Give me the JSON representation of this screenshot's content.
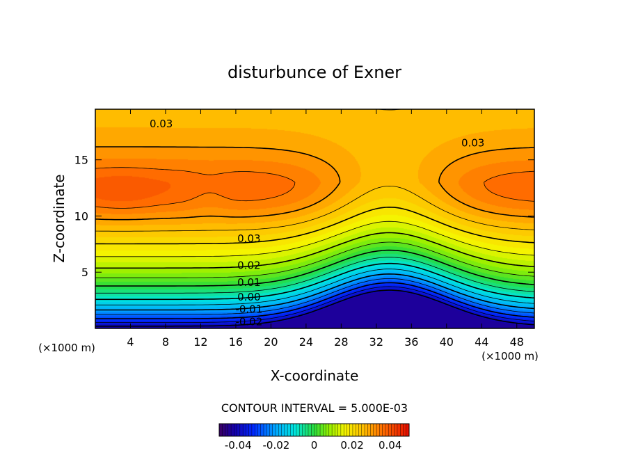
{
  "chart_data": {
    "type": "heatmap",
    "title": "disturbunce of Exner",
    "xlabel": "X-coordinate",
    "ylabel": "Z-coordinate",
    "x_unit_left": "(×1000 m)",
    "x_unit_right": "(×1000 m)",
    "xlim": [
      0,
      50
    ],
    "ylim": [
      0,
      19.5
    ],
    "x_ticks": [
      4,
      8,
      12,
      16,
      20,
      24,
      28,
      32,
      36,
      40,
      44,
      48
    ],
    "x_tick_labels": [
      "4",
      "8",
      "12",
      "16",
      "20",
      "24",
      "28",
      "32",
      "36",
      "40",
      "44",
      "48"
    ],
    "y_ticks": [
      5,
      10,
      15
    ],
    "y_tick_labels": [
      "5",
      "10",
      "15"
    ],
    "contour_interval_text": "CONTOUR INTERVAL = 5.000E-03",
    "contour_interval": 0.005,
    "contour_labels": [
      {
        "text": "0.03",
        "x": 7.5,
        "z": 18.2
      },
      {
        "text": "0.03",
        "x": 43.0,
        "z": 16.5
      },
      {
        "text": "0.03",
        "x": 17.5,
        "z": 8.0
      },
      {
        "text": "0.02",
        "x": 17.5,
        "z": 5.6
      },
      {
        "text": "0.01",
        "x": 17.5,
        "z": 4.1
      },
      {
        "text": "0.00",
        "x": 17.5,
        "z": 2.8
      },
      {
        "text": "-0.01",
        "x": 17.5,
        "z": 1.7
      },
      {
        "text": "-0.02",
        "x": 17.5,
        "z": 0.6
      }
    ],
    "field_range": [
      -0.045,
      0.045
    ],
    "colorbar": {
      "range": [
        -0.05,
        0.05
      ],
      "tick_labels": [
        "-0.04",
        "-0.02",
        "0",
        "0.02",
        "0.04"
      ],
      "tick_values": [
        -0.04,
        -0.02,
        0,
        0.02,
        0.04
      ]
    },
    "grid": false
  }
}
